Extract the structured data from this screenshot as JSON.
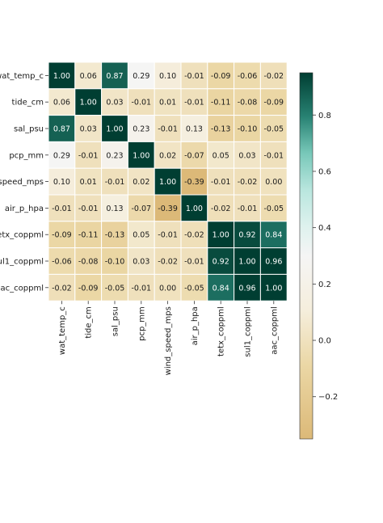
{
  "chart_data": {
    "type": "heatmap",
    "title": "",
    "xlabel": "",
    "ylabel": "",
    "labels": [
      "wat_temp_c",
      "tide_cm",
      "sal_psu",
      "pcp_mm",
      "wind_speed_mps",
      "air_p_hpa",
      "tetx_coppml",
      "sul1_coppml",
      "aac_coppml"
    ],
    "matrix": [
      [
        1.0,
        0.06,
        0.87,
        0.29,
        0.1,
        -0.01,
        -0.09,
        -0.06,
        -0.02
      ],
      [
        0.06,
        1.0,
        0.03,
        -0.01,
        0.01,
        -0.01,
        -0.11,
        -0.08,
        -0.09
      ],
      [
        0.87,
        0.03,
        1.0,
        0.23,
        -0.01,
        0.13,
        -0.13,
        -0.1,
        -0.05
      ],
      [
        0.29,
        -0.01,
        0.23,
        1.0,
        0.02,
        -0.07,
        0.05,
        0.03,
        -0.01
      ],
      [
        0.1,
        0.01,
        -0.01,
        0.02,
        1.0,
        -0.39,
        -0.01,
        -0.02,
        -0.0
      ],
      [
        -0.01,
        -0.01,
        0.13,
        -0.07,
        -0.39,
        1.0,
        -0.02,
        -0.01,
        -0.05
      ],
      [
        -0.09,
        -0.11,
        -0.13,
        0.05,
        -0.01,
        -0.02,
        1.0,
        0.92,
        0.84
      ],
      [
        -0.06,
        -0.08,
        -0.1,
        0.03,
        -0.02,
        -0.01,
        0.92,
        1.0,
        0.96
      ],
      [
        -0.02,
        -0.09,
        -0.05,
        -0.01,
        -0.0,
        -0.05,
        0.84,
        0.96,
        1.0
      ]
    ],
    "colorbar": {
      "range": [
        -0.35,
        0.95
      ],
      "ticks": [
        -0.2,
        0.0,
        0.2,
        0.4,
        0.6,
        0.8
      ],
      "tick_labels": [
        "−0.2",
        "0.0",
        "0.2",
        "0.4",
        "0.6",
        "0.8"
      ]
    },
    "colormap": "BrBG",
    "grid": false,
    "legend": "colorbar-right"
  }
}
